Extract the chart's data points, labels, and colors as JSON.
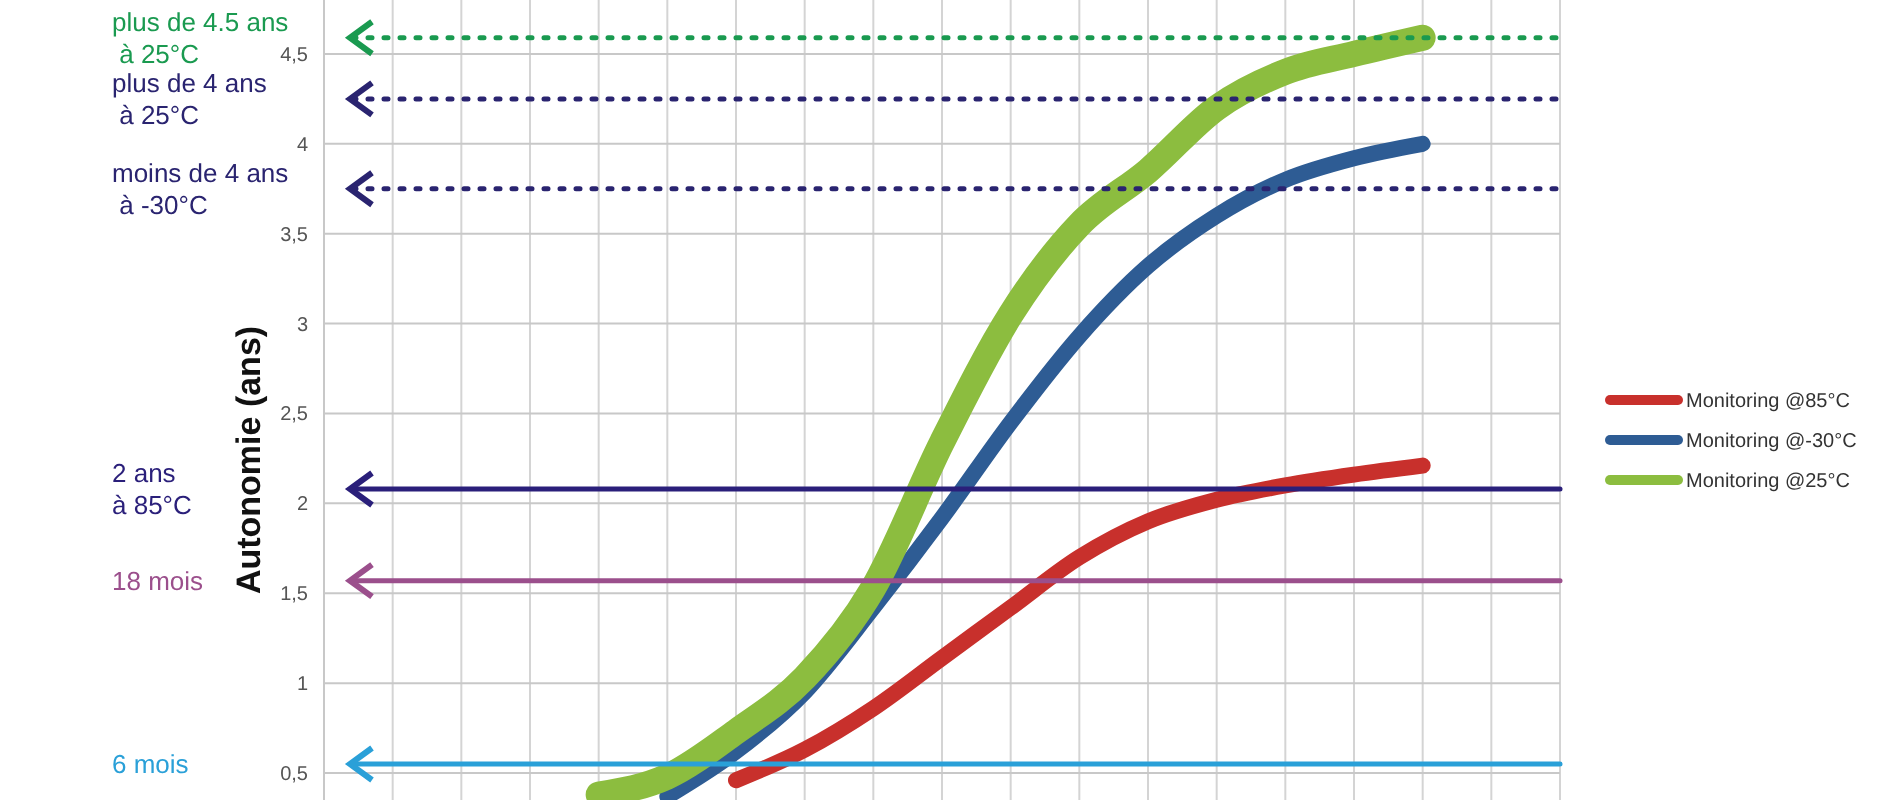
{
  "chart_data": {
    "type": "line",
    "ylabel": "Autonomie (ans)",
    "categories": [
      null,
      null,
      null,
      null,
      null,
      null,
      null,
      null,
      null,
      null,
      null,
      null,
      null,
      null,
      null,
      null,
      null,
      null,
      null
    ],
    "series": [
      {
        "name": "Monitoring @85°C",
        "color": "#c8302c",
        "values": [
          null,
          null,
          null,
          null,
          null,
          null,
          0.46,
          0.63,
          0.86,
          1.14,
          1.42,
          1.7,
          1.9,
          2.02,
          2.1,
          2.16,
          2.21,
          null,
          null
        ]
      },
      {
        "name": "Monitoring @-30°C",
        "color": "#2e5c94",
        "values": [
          null,
          null,
          null,
          null,
          null,
          0.37,
          0.62,
          0.95,
          1.42,
          1.92,
          2.45,
          2.93,
          3.32,
          3.6,
          3.8,
          3.92,
          4.0,
          null,
          null
        ]
      },
      {
        "name": "Monitoring @25°C",
        "color": "#8cbd3f",
        "values": [
          null,
          null,
          null,
          null,
          0.38,
          0.48,
          0.73,
          1.03,
          1.53,
          2.34,
          3.05,
          3.55,
          3.85,
          4.2,
          4.4,
          4.5,
          4.59,
          null,
          null
        ]
      }
    ],
    "ylim": [
      0.35,
      4.8
    ],
    "yticks": [
      {
        "value": 0.5,
        "label": "0,5"
      },
      1,
      {
        "value": 1.5,
        "label": "1,5"
      },
      2,
      {
        "value": 2.5,
        "label": "2,5"
      },
      3,
      {
        "value": 3.5,
        "label": "3,5"
      },
      4,
      {
        "value": 4.5,
        "label": "4,5"
      }
    ],
    "ref_lines": [
      {
        "axis": "y",
        "value": 4.59,
        "label": "plus de 4.5 ans\n à 25°C",
        "color": "#1a9a50",
        "line_style": "dotted"
      },
      {
        "axis": "y",
        "value": 4.25,
        "label": "plus de 4 ans\n à 25°C",
        "color": "#2a2470",
        "line_style": "dotted"
      },
      {
        "axis": "y",
        "value": 3.75,
        "label": "moins de 4 ans\n à -30°C",
        "color": "#2a2470",
        "line_style": "dotted"
      },
      {
        "axis": "y",
        "value": 2.08,
        "label": "2 ans\nà 85°C",
        "color": "#2a1f7a",
        "line_style": "solid"
      },
      {
        "axis": "y",
        "value": 1.57,
        "label": "18 mois",
        "color": "#9b4f8c",
        "line_style": "solid"
      },
      {
        "axis": "y",
        "value": 0.55,
        "label": "6 mois",
        "color": "#2aa0d8",
        "line_style": "solid"
      }
    ],
    "grid": true,
    "legend": "right",
    "marker": "none",
    "line_style": "solid"
  }
}
